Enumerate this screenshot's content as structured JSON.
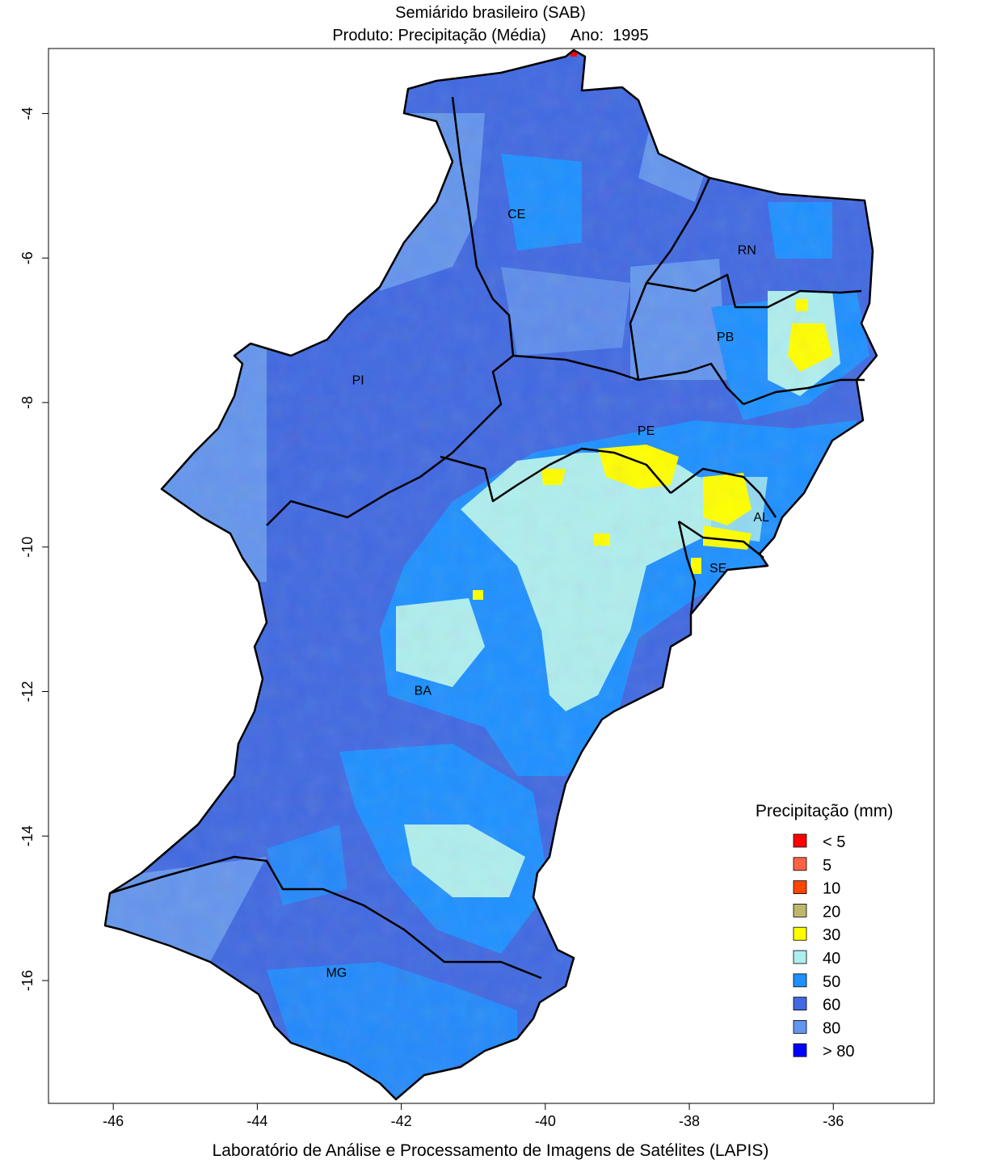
{
  "title": "Semiárido brasileiro (SAB)",
  "subtitle": {
    "product_label": "Produto: Precipitação (Média)",
    "year_label": "Ano:",
    "year": "1995"
  },
  "footer": "Laboratório de Análise e Processamento de Imagens de Satélites (LAPIS)",
  "axes": {
    "x_ticks": [
      "-46",
      "-44",
      "-42",
      "-40",
      "-38",
      "-36"
    ],
    "y_ticks": [
      "-4",
      "-6",
      "-8",
      "-10",
      "-12",
      "-14",
      "-16"
    ],
    "x_range": [
      -46.9,
      -34.6
    ],
    "y_range": [
      -17.7,
      -3.1
    ]
  },
  "legend": {
    "title": "Precipitação (mm)",
    "items": [
      {
        "label": "< 5",
        "color": "#ff0000"
      },
      {
        "label": "5",
        "color": "#ff6347"
      },
      {
        "label": "10",
        "color": "#ff4500"
      },
      {
        "label": "20",
        "color": "#bdb76b"
      },
      {
        "label": "30",
        "color": "#ffff00"
      },
      {
        "label": "40",
        "color": "#afeeee"
      },
      {
        "label": "50",
        "color": "#1e90ff"
      },
      {
        "label": "60",
        "color": "#4169e1"
      },
      {
        "label": "80",
        "color": "#6495ed"
      },
      {
        "label": "> 80",
        "color": "#0000ff"
      }
    ]
  },
  "states": [
    {
      "label": "CE",
      "lon": -40.4,
      "lat": -5.4
    },
    {
      "label": "RN",
      "lon": -37.2,
      "lat": -5.9
    },
    {
      "label": "PB",
      "lon": -37.5,
      "lat": -7.1
    },
    {
      "label": "PI",
      "lon": -42.6,
      "lat": -7.7
    },
    {
      "label": "PE",
      "lon": -38.6,
      "lat": -8.4
    },
    {
      "label": "AL",
      "lon": -37.0,
      "lat": -9.6
    },
    {
      "label": "SE",
      "lon": -37.6,
      "lat": -10.3
    },
    {
      "label": "BA",
      "lon": -41.7,
      "lat": -12.0
    },
    {
      "label": "MG",
      "lon": -42.9,
      "lat": -15.9
    }
  ]
}
